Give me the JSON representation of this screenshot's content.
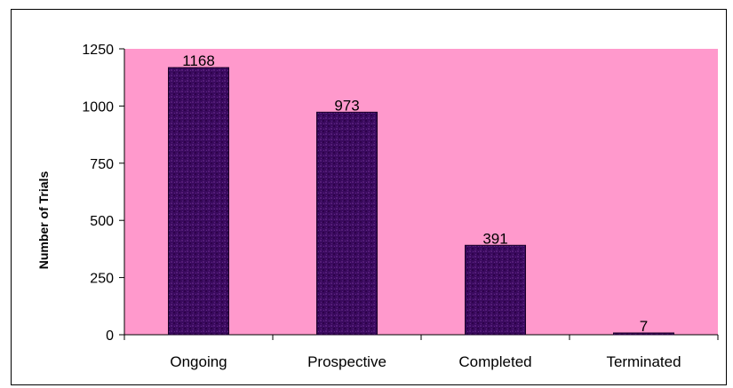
{
  "chart_data": {
    "type": "bar",
    "categories": [
      "Ongoing",
      "Prospective",
      "Completed",
      "Terminated"
    ],
    "values": [
      1168,
      973,
      391,
      7
    ],
    "data_labels": [
      "1168",
      "973",
      "391",
      "7"
    ],
    "title": "",
    "xlabel": "",
    "ylabel": "Number of Trials",
    "ylim": [
      0,
      1250
    ],
    "yticks": [
      0,
      250,
      500,
      750,
      1000,
      1250
    ],
    "ytick_labels": [
      "0",
      "250",
      "500",
      "750",
      "1000",
      "1250"
    ],
    "grid": false,
    "legend": "none",
    "colors": {
      "plot_background": "#ff99cc",
      "bar_fill": "#3a0a5e",
      "bar_texture": "#6a2a8e",
      "bar_edge": "#1a0028",
      "axis": "#000000"
    }
  }
}
